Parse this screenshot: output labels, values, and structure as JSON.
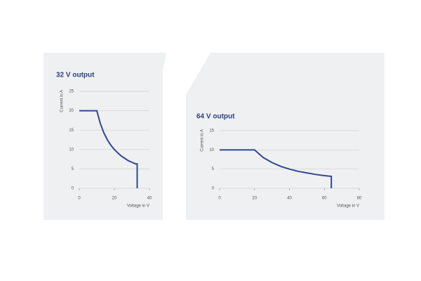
{
  "chart_data": [
    {
      "type": "line",
      "title": "32 V output",
      "y_label": "Current in A",
      "x_label": "Voltage in V",
      "x": [
        0,
        10,
        12,
        14,
        16,
        18,
        20,
        22,
        24,
        26,
        28,
        30,
        32,
        33,
        33
      ],
      "series": [
        {
          "color": "#34488a",
          "values": [
            20,
            20,
            16.7,
            14.3,
            12.5,
            11.1,
            10,
            9.1,
            8.3,
            7.7,
            7.1,
            6.7,
            6.3,
            6.3,
            0
          ]
        }
      ],
      "xlim": [
        0,
        40
      ],
      "xticks": [
        0,
        20,
        40
      ],
      "ylim": [
        0,
        25
      ],
      "yticks": [
        0,
        5,
        10,
        15,
        20,
        25
      ],
      "grid": true
    },
    {
      "type": "line",
      "title": "64 V output",
      "y_label": "Current in A",
      "x_label": "Voltage in V",
      "x": [
        0,
        20,
        25,
        30,
        35,
        40,
        45,
        50,
        55,
        60,
        64,
        64
      ],
      "series": [
        {
          "color": "#34488a",
          "values": [
            10,
            10,
            8,
            6.7,
            5.7,
            5,
            4.4,
            4,
            3.6,
            3.3,
            3.1,
            0
          ]
        }
      ],
      "xlim": [
        0,
        80
      ],
      "xticks": [
        0,
        20,
        40,
        60,
        80
      ],
      "ylim": [
        0,
        15
      ],
      "yticks": [
        0,
        5,
        10,
        15
      ],
      "grid": true
    }
  ]
}
